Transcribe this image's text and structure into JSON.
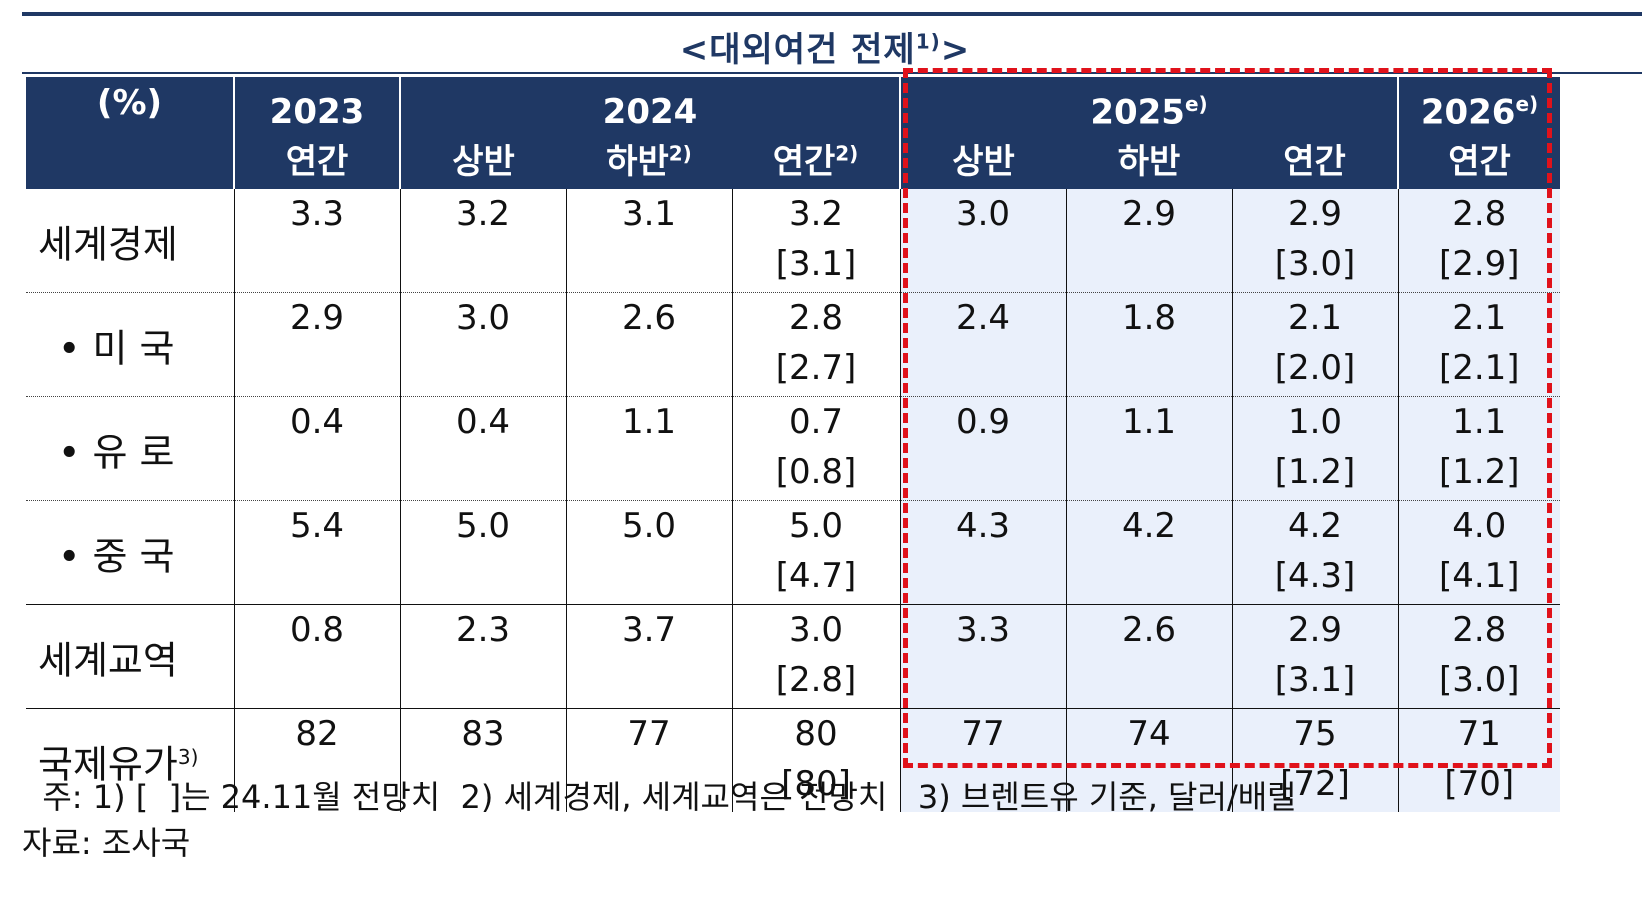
{
  "title": "<대외여건 전제",
  "title_sup": "1)",
  "title_end": ">",
  "header": {
    "unit": "(%)",
    "years": [
      {
        "label": "2023",
        "sup": ""
      },
      {
        "label": "2024",
        "sup": ""
      },
      {
        "label": "2025",
        "sup": "e)"
      },
      {
        "label": "2026",
        "sup": "e)"
      }
    ],
    "periods": [
      {
        "label": "연간",
        "sup": ""
      },
      {
        "label": "상반",
        "sup": ""
      },
      {
        "label": "하반",
        "sup": "2)"
      },
      {
        "label": "연간",
        "sup": "2)"
      },
      {
        "label": "상반",
        "sup": ""
      },
      {
        "label": "하반",
        "sup": ""
      },
      {
        "label": "연간",
        "sup": ""
      },
      {
        "label": "연간",
        "sup": ""
      }
    ]
  },
  "rows": [
    {
      "label": "세계경제",
      "sup": "",
      "values": [
        "3.3",
        "3.2",
        "3.1",
        "3.2",
        "3.0",
        "2.9",
        "2.9",
        "2.8"
      ],
      "prev": [
        "",
        "",
        "",
        "[3.1]",
        "",
        "",
        "[3.0]",
        "[2.9]"
      ]
    },
    {
      "label": "• 미 국",
      "sup": "",
      "values": [
        "2.9",
        "3.0",
        "2.6",
        "2.8",
        "2.4",
        "1.8",
        "2.1",
        "2.1"
      ],
      "prev": [
        "",
        "",
        "",
        "[2.7]",
        "",
        "",
        "[2.0]",
        "[2.1]"
      ]
    },
    {
      "label": "• 유 로",
      "sup": "",
      "values": [
        "0.4",
        "0.4",
        "1.1",
        "0.7",
        "0.9",
        "1.1",
        "1.0",
        "1.1"
      ],
      "prev": [
        "",
        "",
        "",
        "[0.8]",
        "",
        "",
        "[1.2]",
        "[1.2]"
      ]
    },
    {
      "label": "• 중 국",
      "sup": "",
      "values": [
        "5.4",
        "5.0",
        "5.0",
        "5.0",
        "4.3",
        "4.2",
        "4.2",
        "4.0"
      ],
      "prev": [
        "",
        "",
        "",
        "[4.7]",
        "",
        "",
        "[4.3]",
        "[4.1]"
      ]
    },
    {
      "label": "세계교역",
      "sup": "",
      "values": [
        "0.8",
        "2.3",
        "3.7",
        "3.0",
        "3.3",
        "2.6",
        "2.9",
        "2.8"
      ],
      "prev": [
        "",
        "",
        "",
        "[2.8]",
        "",
        "",
        "[3.1]",
        "[3.0]"
      ]
    },
    {
      "label": "국제유가",
      "sup": "3)",
      "values": [
        "82",
        "83",
        "77",
        "80",
        "77",
        "74",
        "75",
        "71"
      ],
      "prev": [
        "",
        "",
        "",
        "[80]",
        "",
        "",
        "[72]",
        "[70]"
      ]
    }
  ],
  "notes": {
    "footnote": "  주: 1) [  ]는 24.11월 전망치  2) 세계경제, 세계교역은 전망치   3) 브렌트유 기준, 달러/배럴",
    "source": "자료: 조사국"
  },
  "colors": {
    "header_bg": "#1f3864",
    "highlight_bg": "#eaf0fb",
    "highlight_border": "#e0121b"
  }
}
